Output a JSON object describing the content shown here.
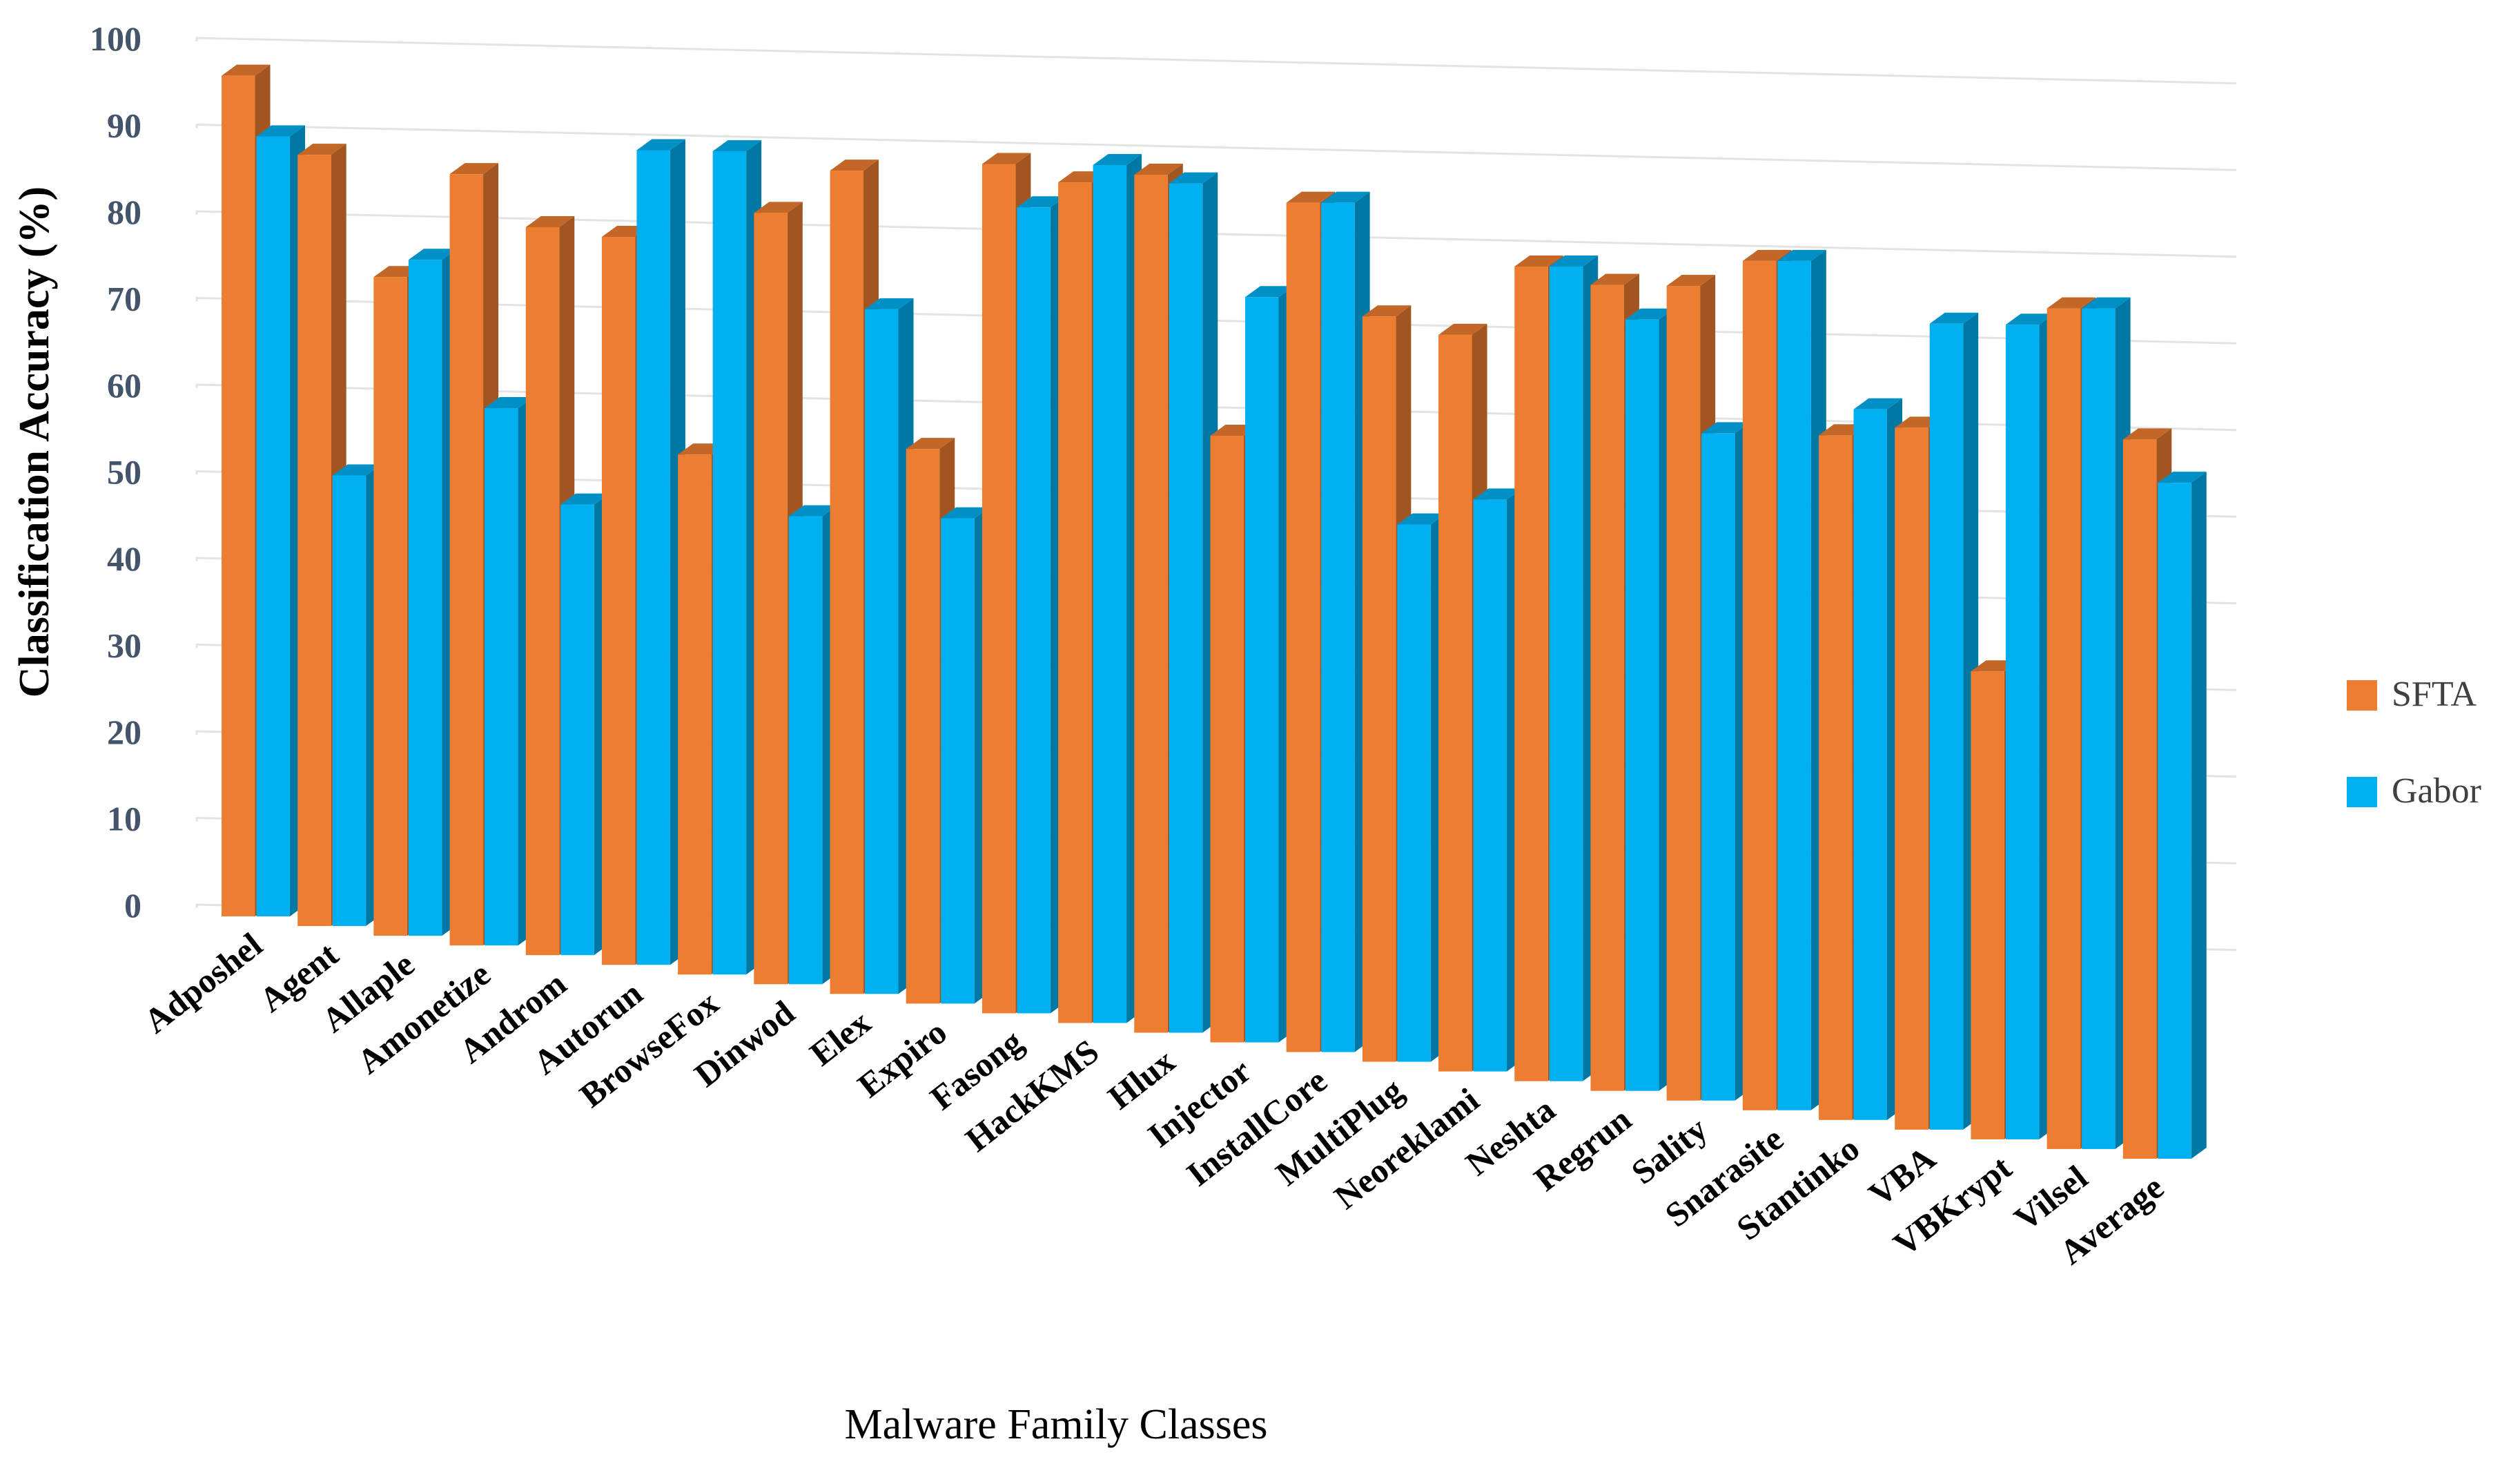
{
  "chart_data": {
    "type": "bar",
    "style": "3d-clustered-column",
    "title": "",
    "xlabel": "Malware Family Classes",
    "ylabel": "Classification Accuracy (%)",
    "ylim": [
      0,
      100
    ],
    "yticks": [
      0,
      10,
      20,
      30,
      40,
      50,
      60,
      70,
      80,
      90,
      100
    ],
    "grid": true,
    "legend_position": "right",
    "categories": [
      "Adposhel",
      "Agent",
      "Allaple",
      "Amonetize",
      "Androm",
      "Autorun",
      "BrowseFox",
      "Dinwod",
      "Elex",
      "Expiro",
      "Fasong",
      "HackKMS",
      "Hlux",
      "Injector",
      "InstallCore",
      "MultiPlug",
      "Neoreklami",
      "Neshta",
      "Regrun",
      "Sality",
      "Snarasite",
      "Stantinko",
      "VBA",
      "VBKrypt",
      "Vilsel",
      "Average"
    ],
    "series": [
      {
        "name": "SFTA",
        "color": "#ed7d31",
        "values": [
          97,
          89,
          76,
          89,
          84,
          84,
          60,
          89,
          95,
          64,
          98,
          97,
          99,
          70,
          98,
          86,
          85,
          94,
          93,
          94,
          98,
          79,
          81,
          54,
          97,
          83
        ]
      },
      {
        "name": "Gabor",
        "color": "#00b0f0",
        "values": [
          90,
          52,
          78,
          62,
          52,
          94,
          95,
          54,
          79,
          56,
          93,
          99,
          98,
          86,
          98,
          62,
          66,
          94,
          89,
          77,
          98,
          82,
          93,
          94,
          97,
          78
        ]
      }
    ]
  }
}
